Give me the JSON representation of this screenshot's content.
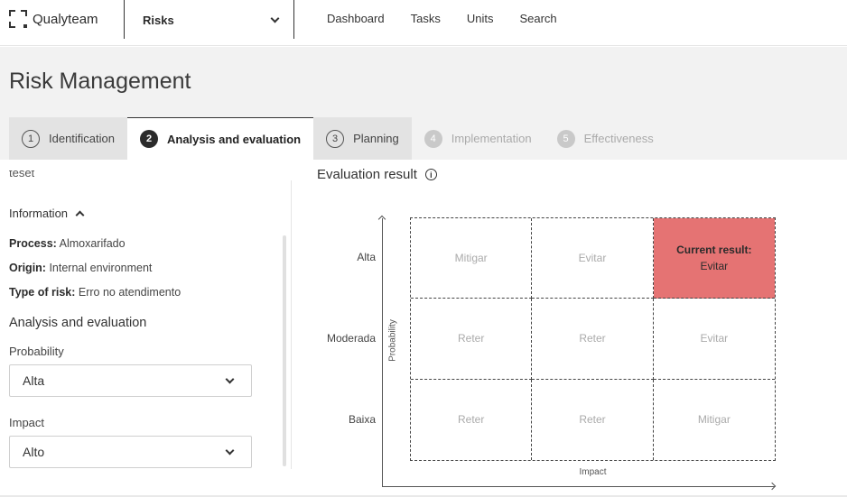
{
  "topbar": {
    "brand": "Qualyteam",
    "module": "Risks",
    "nav": [
      "Dashboard",
      "Tasks",
      "Units",
      "Search"
    ]
  },
  "page": {
    "title": "Risk Management"
  },
  "tabs": [
    {
      "number": "1",
      "label": "Identification",
      "state": "done"
    },
    {
      "number": "2",
      "label": "Analysis and evaluation",
      "state": "active"
    },
    {
      "number": "3",
      "label": "Planning",
      "state": "done"
    },
    {
      "number": "4",
      "label": "Implementation",
      "state": "disabled"
    },
    {
      "number": "5",
      "label": "Effectiveness",
      "state": "disabled"
    }
  ],
  "left": {
    "cut_text": "teset",
    "info_toggle": "Information",
    "process_label": "Process:",
    "process_value": "Almoxarifado",
    "origin_label": "Origin:",
    "origin_value": "Internal environment",
    "type_label": "Type of risk:",
    "type_value": "Erro no atendimento",
    "section_title": "Analysis and evaluation",
    "probability_label": "Probability",
    "probability_value": "Alta",
    "impact_label": "Impact",
    "impact_value": "Alto"
  },
  "evaluation": {
    "title": "Evaluation result",
    "y_axis_title": "Probability",
    "x_axis_title": "Impact",
    "rows": [
      "Alta",
      "Moderada",
      "Baixa"
    ],
    "matrix": [
      [
        "Mitigar",
        "Evitar",
        "Current result:"
      ],
      [
        "Reter",
        "Reter",
        "Evitar"
      ],
      [
        "Reter",
        "Reter",
        "Mitigar"
      ]
    ],
    "current_label": "Current result:",
    "current_value": "Evitar",
    "current_color": "#e57373"
  }
}
